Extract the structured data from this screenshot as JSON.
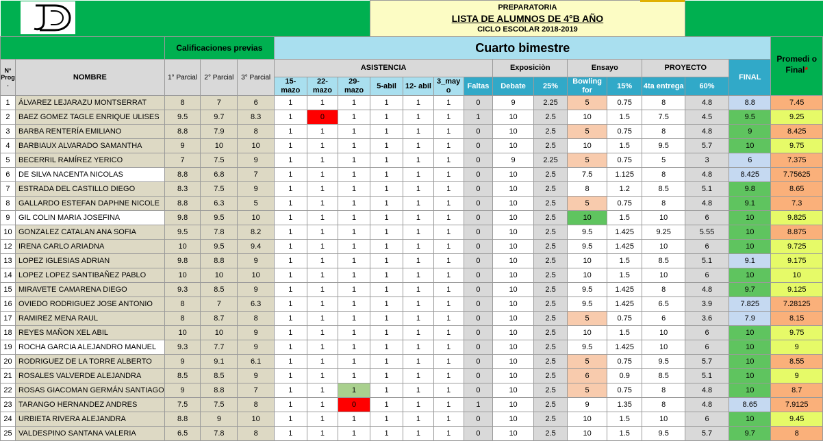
{
  "header": {
    "line1": "PREPARATORIA",
    "line2": "LISTA DE ALUMNOS DE 4°B AÑO",
    "line3": "CICLO ESCOLAR 2018-2019",
    "logo_icon": "school-logo-icon"
  },
  "sections": {
    "previas": "Calificaciones previas",
    "bimestre": "Cuarto bimestre",
    "promedio": "Promedi o Final",
    "promedio_mark": "*"
  },
  "columns": {
    "num": "N° Prog .",
    "nombre": "NOMBRE",
    "p1": "1° Parcial",
    "p2": "2° Parcial",
    "p3": "3° Parcial",
    "asistencia": "ASISTENCIA",
    "dates": [
      "15- mazo",
      "22- mazo",
      "29- mazo",
      "5-abil",
      "12- abil",
      "3_may o"
    ],
    "faltas": "Faltas",
    "exposicion": "Exposiciòn",
    "debate": "Debate",
    "exp_pct": "25%",
    "ensayo": "Ensayo",
    "bowling": "Bowling for",
    "ens_pct": "15%",
    "proyecto": "PROYECTO",
    "entrega": "4ta entrega",
    "proy_pct": "60%",
    "final": "FINAL"
  },
  "students": [
    {
      "n": "1",
      "name": "ÁLVAREZ LEJARAZU MONTSERRAT",
      "p": [
        "8",
        "7",
        "6"
      ],
      "a": [
        "1",
        "1",
        "1",
        "1",
        "1",
        "1"
      ],
      "f": "0",
      "deb": "9",
      "dp": "2.25",
      "bow": "5",
      "bp": "0.75",
      "ent": "8",
      "ep": "4.8",
      "fin": "8.8",
      "pro": "7.45"
    },
    {
      "n": "2",
      "name": "BAEZ GOMEZ TAGLE ENRIQUE ULISES",
      "p": [
        "9.5",
        "9.7",
        "8.3"
      ],
      "a": [
        "1",
        "0",
        "1",
        "1",
        "1",
        "1"
      ],
      "f": "1",
      "deb": "10",
      "dp": "2.5",
      "bow": "10",
      "bp": "1.5",
      "ent": "7.5",
      "ep": "4.5",
      "fin": "9.5",
      "pro": "9.25"
    },
    {
      "n": "3",
      "name": "BARBA RENTERÍA EMILIANO",
      "p": [
        "8.8",
        "7.9",
        "8"
      ],
      "a": [
        "1",
        "1",
        "1",
        "1",
        "1",
        "1"
      ],
      "f": "0",
      "deb": "10",
      "dp": "2.5",
      "bow": "5",
      "bp": "0.75",
      "ent": "8",
      "ep": "4.8",
      "fin": "9",
      "pro": "8.425"
    },
    {
      "n": "4",
      "name": "BARBIAUX ALVARADO SAMANTHA",
      "p": [
        "9",
        "10",
        "10"
      ],
      "a": [
        "1",
        "1",
        "1",
        "1",
        "1",
        "1"
      ],
      "f": "0",
      "deb": "10",
      "dp": "2.5",
      "bow": "10",
      "bp": "1.5",
      "ent": "9.5",
      "ep": "5.7",
      "fin": "10",
      "pro": "9.75"
    },
    {
      "n": "5",
      "name": "BECERRIL RAMÍREZ YERICO",
      "p": [
        "7",
        "7.5",
        "9"
      ],
      "a": [
        "1",
        "1",
        "1",
        "1",
        "1",
        "1"
      ],
      "f": "0",
      "deb": "9",
      "dp": "2.25",
      "bow": "5",
      "bp": "0.75",
      "ent": "5",
      "ep": "3",
      "fin": "6",
      "pro": "7.375"
    },
    {
      "n": "6",
      "name": "DE SILVA NACENTA NICOLAS",
      "p": [
        "8.8",
        "6.8",
        "7"
      ],
      "a": [
        "1",
        "1",
        "1",
        "1",
        "1",
        "1"
      ],
      "f": "0",
      "deb": "10",
      "dp": "2.5",
      "bow": "7.5",
      "bp": "1.125",
      "ent": "8",
      "ep": "4.8",
      "fin": "8.425",
      "pro": "7.75625"
    },
    {
      "n": "7",
      "name": "ESTRADA DEL CASTILLO DIEGO",
      "p": [
        "8.3",
        "7.5",
        "9"
      ],
      "a": [
        "1",
        "1",
        "1",
        "1",
        "1",
        "1"
      ],
      "f": "0",
      "deb": "10",
      "dp": "2.5",
      "bow": "8",
      "bp": "1.2",
      "ent": "8.5",
      "ep": "5.1",
      "fin": "9.8",
      "pro": "8.65"
    },
    {
      "n": "8",
      "name": "GALLARDO ESTEFAN DAPHNE NICOLE",
      "p": [
        "8.8",
        "6.3",
        "5"
      ],
      "a": [
        "1",
        "1",
        "1",
        "1",
        "1",
        "1"
      ],
      "f": "0",
      "deb": "10",
      "dp": "2.5",
      "bow": "5",
      "bp": "0.75",
      "ent": "8",
      "ep": "4.8",
      "fin": "9.1",
      "pro": "7.3"
    },
    {
      "n": "9",
      "name": "GIL COLIN MARIA JOSEFINA",
      "p": [
        "9.8",
        "9.5",
        "10"
      ],
      "a": [
        "1",
        "1",
        "1",
        "1",
        "1",
        "1"
      ],
      "f": "0",
      "deb": "10",
      "dp": "2.5",
      "bow": "10",
      "bp": "1.5",
      "ent": "10",
      "ep": "6",
      "fin": "10",
      "pro": "9.825"
    },
    {
      "n": "10",
      "name": "GONZALEZ CATALAN ANA SOFIA",
      "p": [
        "9.5",
        "7.8",
        "8.2"
      ],
      "a": [
        "1",
        "1",
        "1",
        "1",
        "1",
        "1"
      ],
      "f": "0",
      "deb": "10",
      "dp": "2.5",
      "bow": "9.5",
      "bp": "1.425",
      "ent": "9.25",
      "ep": "5.55",
      "fin": "10",
      "pro": "8.875"
    },
    {
      "n": "12",
      "name": "IRENA CARLO ARIADNA",
      "p": [
        "10",
        "9.5",
        "9.4"
      ],
      "a": [
        "1",
        "1",
        "1",
        "1",
        "1",
        "1"
      ],
      "f": "0",
      "deb": "10",
      "dp": "2.5",
      "bow": "9.5",
      "bp": "1.425",
      "ent": "10",
      "ep": "6",
      "fin": "10",
      "pro": "9.725"
    },
    {
      "n": "13",
      "name": "LOPEZ IGLESIAS ADRIAN",
      "p": [
        "9.8",
        "8.8",
        "9"
      ],
      "a": [
        "1",
        "1",
        "1",
        "1",
        "1",
        "1"
      ],
      "f": "0",
      "deb": "10",
      "dp": "2.5",
      "bow": "10",
      "bp": "1.5",
      "ent": "8.5",
      "ep": "5.1",
      "fin": "9.1",
      "pro": "9.175"
    },
    {
      "n": "14",
      "name": "LOPEZ LOPEZ SANTIBAÑEZ PABLO",
      "p": [
        "10",
        "10",
        "10"
      ],
      "a": [
        "1",
        "1",
        "1",
        "1",
        "1",
        "1"
      ],
      "f": "0",
      "deb": "10",
      "dp": "2.5",
      "bow": "10",
      "bp": "1.5",
      "ent": "10",
      "ep": "6",
      "fin": "10",
      "pro": "10"
    },
    {
      "n": "15",
      "name": "MIRAVETE CAMARENA DIEGO",
      "p": [
        "9.3",
        "8.5",
        "9"
      ],
      "a": [
        "1",
        "1",
        "1",
        "1",
        "1",
        "1"
      ],
      "f": "0",
      "deb": "10",
      "dp": "2.5",
      "bow": "9.5",
      "bp": "1.425",
      "ent": "8",
      "ep": "4.8",
      "fin": "9.7",
      "pro": "9.125"
    },
    {
      "n": "16",
      "name": "OVIEDO RODRIGUEZ JOSE ANTONIO",
      "p": [
        "8",
        "7",
        "6.3"
      ],
      "a": [
        "1",
        "1",
        "1",
        "1",
        "1",
        "1"
      ],
      "f": "0",
      "deb": "10",
      "dp": "2.5",
      "bow": "9.5",
      "bp": "1.425",
      "ent": "6.5",
      "ep": "3.9",
      "fin": "7.825",
      "pro": "7.28125"
    },
    {
      "n": "17",
      "name": "RAMIREZ MENA RAUL",
      "p": [
        "8",
        "8.7",
        "8"
      ],
      "a": [
        "1",
        "1",
        "1",
        "1",
        "1",
        "1"
      ],
      "f": "0",
      "deb": "10",
      "dp": "2.5",
      "bow": "5",
      "bp": "0.75",
      "ent": "6",
      "ep": "3.6",
      "fin": "7.9",
      "pro": "8.15"
    },
    {
      "n": "18",
      "name": "REYES MAÑON XEL ABIL",
      "p": [
        "10",
        "10",
        "9"
      ],
      "a": [
        "1",
        "1",
        "1",
        "1",
        "1",
        "1"
      ],
      "f": "0",
      "deb": "10",
      "dp": "2.5",
      "bow": "10",
      "bp": "1.5",
      "ent": "10",
      "ep": "6",
      "fin": "10",
      "pro": "9.75"
    },
    {
      "n": "19",
      "name": "ROCHA GARCIA ALEJANDRO MANUEL",
      "p": [
        "9.3",
        "7.7",
        "9"
      ],
      "a": [
        "1",
        "1",
        "1",
        "1",
        "1",
        "1"
      ],
      "f": "0",
      "deb": "10",
      "dp": "2.5",
      "bow": "9.5",
      "bp": "1.425",
      "ent": "10",
      "ep": "6",
      "fin": "10",
      "pro": "9"
    },
    {
      "n": "20",
      "name": "RODRIGUEZ DE LA TORRE ALBERTO",
      "p": [
        "9",
        "9.1",
        "6.1"
      ],
      "a": [
        "1",
        "1",
        "1",
        "1",
        "1",
        "1"
      ],
      "f": "0",
      "deb": "10",
      "dp": "2.5",
      "bow": "5",
      "bp": "0.75",
      "ent": "9.5",
      "ep": "5.7",
      "fin": "10",
      "pro": "8.55"
    },
    {
      "n": "21",
      "name": "ROSALES VALVERDE ALEJANDRA",
      "p": [
        "8.5",
        "8.5",
        "9"
      ],
      "a": [
        "1",
        "1",
        "1",
        "1",
        "1",
        "1"
      ],
      "f": "0",
      "deb": "10",
      "dp": "2.5",
      "bow": "6",
      "bp": "0.9",
      "ent": "8.5",
      "ep": "5.1",
      "fin": "10",
      "pro": "9"
    },
    {
      "n": "22",
      "name": "ROSAS GIACOMAN GERMÁN SANTIAGO",
      "p": [
        "9",
        "8.8",
        "7"
      ],
      "a": [
        "1",
        "1",
        "1",
        "1",
        "1",
        "1"
      ],
      "f": "0",
      "deb": "10",
      "dp": "2.5",
      "bow": "5",
      "bp": "0.75",
      "ent": "8",
      "ep": "4.8",
      "fin": "10",
      "pro": "8.7"
    },
    {
      "n": "23",
      "name": "TARANGO HERNANDEZ ANDRES",
      "p": [
        "7.5",
        "7.5",
        "8"
      ],
      "a": [
        "1",
        "1",
        "0",
        "1",
        "1",
        "1"
      ],
      "f": "1",
      "deb": "10",
      "dp": "2.5",
      "bow": "9",
      "bp": "1.35",
      "ent": "8",
      "ep": "4.8",
      "fin": "8.65",
      "pro": "7.9125"
    },
    {
      "n": "24",
      "name": "URBIETA RIVERA ALEJANDRA",
      "p": [
        "8.8",
        "9",
        "10"
      ],
      "a": [
        "1",
        "1",
        "1",
        "1",
        "1",
        "1"
      ],
      "f": "0",
      "deb": "10",
      "dp": "2.5",
      "bow": "10",
      "bp": "1.5",
      "ent": "10",
      "ep": "6",
      "fin": "10",
      "pro": "9.45"
    },
    {
      "n": "25",
      "name": "VALDESPINO SANTANA VALERIA",
      "p": [
        "6.5",
        "7.8",
        "8"
      ],
      "a": [
        "1",
        "1",
        "1",
        "1",
        "1",
        "1"
      ],
      "f": "0",
      "deb": "10",
      "dp": "2.5",
      "bow": "10",
      "bp": "1.5",
      "ent": "9.5",
      "ep": "5.7",
      "fin": "9.7",
      "pro": "8"
    }
  ],
  "colors": {
    "header_green": "#00b050",
    "header_blue": "#a9dfef",
    "title_yellow": "#fcfcc4",
    "name_tan": "#ddd9c4",
    "low_pink": "#f8cbad",
    "high_green": "#5fc45f",
    "final_blue": "#c5d9f1",
    "promedio_orange": "#fab07a",
    "promedio_yellow": "#e6fa68",
    "absent_red": "#ff0000"
  }
}
